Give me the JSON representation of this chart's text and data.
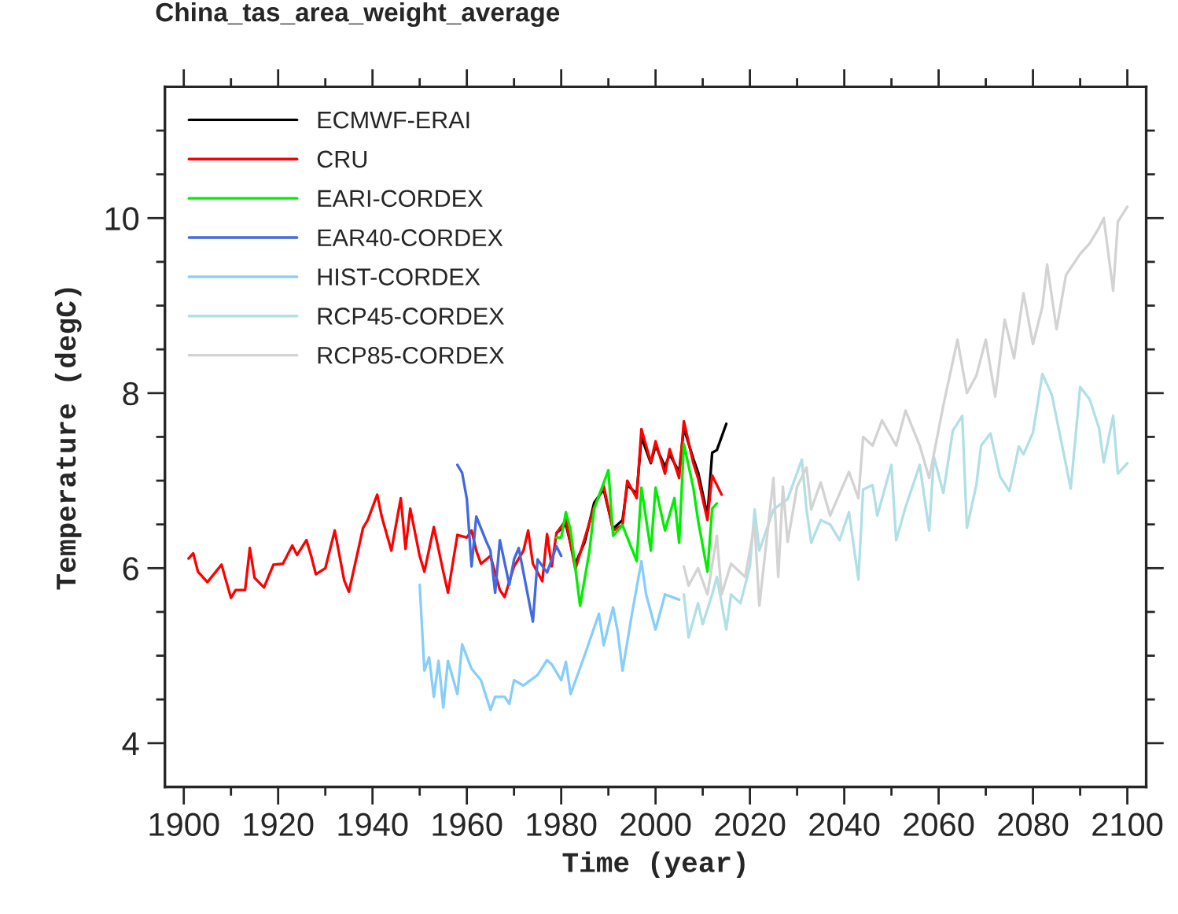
{
  "chart_data": {
    "type": "line",
    "title": "China_tas_area_weight_average",
    "xlabel": "Time (year)",
    "ylabel": "Temperature (degC)",
    "xlim": [
      1896,
      2104
    ],
    "ylim": [
      3.5,
      11.5
    ],
    "xticks": [
      1900,
      {
        "value": 1910,
        "label": null
      },
      1920,
      {
        "value": 1930,
        "label": null
      },
      1940,
      {
        "value": 1950,
        "label": null
      },
      1960,
      {
        "value": 1970,
        "label": null
      },
      1980,
      {
        "value": 1990,
        "label": null
      },
      2000,
      {
        "value": 2010,
        "label": null
      },
      2020,
      {
        "value": 2030,
        "label": null
      },
      2040,
      {
        "value": 2050,
        "label": null
      },
      2060,
      {
        "value": 2070,
        "label": null
      },
      2080,
      {
        "value": 2090,
        "label": null
      },
      2100
    ],
    "yticks": [
      4,
      {
        "value": 4.5,
        "label": null
      },
      {
        "value": 5,
        "label": null
      },
      {
        "value": 5.5,
        "label": null
      },
      6,
      {
        "value": 6.5,
        "label": null
      },
      {
        "value": 7,
        "label": null
      },
      {
        "value": 7.5,
        "label": null
      },
      8,
      {
        "value": 8.5,
        "label": null
      },
      {
        "value": 9,
        "label": null
      },
      {
        "value": 9.5,
        "label": null
      },
      10,
      {
        "value": 10.5,
        "label": null
      },
      {
        "value": 11,
        "label": null
      }
    ],
    "legend": "top left",
    "grid": false,
    "marker": "none",
    "line_style": "solid",
    "series": [
      {
        "name": "ECMWF-ERAI",
        "color": "#000000",
        "x": [
          1979,
          1981,
          1983,
          1985,
          1987,
          1989,
          1991,
          1993,
          1994,
          1996,
          1997,
          1999,
          2000,
          2002,
          2003,
          2005,
          2006,
          2008,
          2009,
          2011,
          2012,
          2013,
          2015
        ],
        "values": [
          6.4,
          6.5,
          6.05,
          6.3,
          6.75,
          6.9,
          6.45,
          6.55,
          6.95,
          6.85,
          7.5,
          7.2,
          7.4,
          7.16,
          7.3,
          7.1,
          7.6,
          7.25,
          7.1,
          6.6,
          7.32,
          7.35,
          7.65
        ]
      },
      {
        "name": "CRU",
        "color": "#ff0000",
        "x": [
          1901,
          1902,
          1903,
          1905,
          1908,
          1910,
          1911,
          1913,
          1914,
          1915,
          1917,
          1919,
          1921,
          1923,
          1924,
          1926,
          1927,
          1928,
          1930,
          1932,
          1934,
          1935,
          1938,
          1939,
          1941,
          1942,
          1944,
          1946,
          1947,
          1948,
          1950,
          1951,
          1953,
          1955,
          1956,
          1958,
          1960,
          1961,
          1962,
          1963,
          1965,
          1967,
          1968,
          1970,
          1972,
          1973,
          1974,
          1976,
          1977,
          1978,
          1979,
          1981,
          1983,
          1987,
          1989,
          1991,
          1993,
          1994,
          1996,
          1997,
          1999,
          2000,
          2002,
          2003,
          2005,
          2006,
          2008,
          2009,
          2011,
          2012,
          2014
        ],
        "values": [
          6.11,
          6.17,
          5.96,
          5.84,
          6.04,
          5.66,
          5.75,
          5.75,
          6.23,
          5.89,
          5.78,
          6.04,
          6.05,
          6.26,
          6.15,
          6.32,
          6.14,
          5.93,
          6.0,
          6.43,
          5.86,
          5.73,
          6.46,
          6.55,
          6.84,
          6.58,
          6.2,
          6.8,
          6.22,
          6.68,
          6.14,
          5.96,
          6.47,
          5.96,
          5.72,
          6.38,
          6.35,
          6.43,
          6.2,
          6.05,
          6.14,
          5.75,
          5.67,
          6.02,
          6.2,
          6.43,
          6.05,
          5.85,
          6.39,
          6.02,
          6.4,
          6.55,
          5.99,
          6.7,
          6.94,
          6.43,
          6.49,
          7.0,
          6.8,
          7.59,
          7.21,
          7.45,
          7.08,
          7.36,
          7.03,
          7.68,
          7.2,
          7.03,
          6.55,
          7.06,
          6.84
        ]
      },
      {
        "name": "EARI-CORDEX",
        "color": "#00ee00",
        "x": [
          1979,
          1980,
          1981,
          1982,
          1984,
          1986,
          1987,
          1990,
          1991,
          1993,
          1996,
          1997,
          1999,
          2000,
          2002,
          2004,
          2005,
          2006,
          2008,
          2009,
          2011,
          2012,
          2013
        ],
        "values": [
          6.35,
          6.35,
          6.64,
          6.43,
          5.57,
          6.2,
          6.68,
          7.12,
          6.37,
          6.49,
          6.08,
          6.92,
          6.2,
          6.92,
          6.43,
          6.8,
          6.29,
          7.42,
          6.92,
          6.55,
          5.96,
          6.68,
          6.74
        ]
      },
      {
        "name": "EAR40-CORDEX",
        "color": "#4169e1",
        "x": [
          1958,
          1959,
          1960,
          1961,
          1962,
          1964,
          1965,
          1966,
          1967,
          1969,
          1970,
          1971,
          1974,
          1975,
          1977,
          1979,
          1980
        ],
        "values": [
          7.18,
          7.09,
          6.79,
          6.02,
          6.59,
          6.32,
          6.2,
          5.72,
          6.32,
          5.81,
          6.1,
          6.23,
          5.39,
          6.1,
          5.95,
          6.25,
          6.14
        ]
      },
      {
        "name": "HIST-CORDEX",
        "color": "#87cefa",
        "x": [
          1950,
          1951,
          1952,
          1953,
          1954,
          1955,
          1956,
          1958,
          1959,
          1961,
          1963,
          1965,
          1966,
          1968,
          1969,
          1970,
          1972,
          1975,
          1977,
          1978,
          1980,
          1981,
          1982,
          1985,
          1988,
          1989,
          1991,
          1992,
          1993,
          1995,
          1997,
          1998,
          2000,
          2002,
          2005
        ],
        "values": [
          5.81,
          4.83,
          4.98,
          4.53,
          4.94,
          4.41,
          4.94,
          4.56,
          5.13,
          4.85,
          4.72,
          4.38,
          4.53,
          4.53,
          4.45,
          4.72,
          4.66,
          4.78,
          4.95,
          4.9,
          4.72,
          4.93,
          4.56,
          5.01,
          5.48,
          5.12,
          5.55,
          5.27,
          4.83,
          5.48,
          6.08,
          5.7,
          5.3,
          5.7,
          5.64
        ]
      },
      {
        "name": "RCP45-CORDEX",
        "color": "#b0e0e6",
        "x": [
          2006,
          2007,
          2009,
          2010,
          2012,
          2013,
          2015,
          2016,
          2018,
          2020,
          2021,
          2022,
          2025,
          2028,
          2031,
          2032,
          2033,
          2035,
          2037,
          2039,
          2041,
          2043,
          2044,
          2046,
          2047,
          2050,
          2051,
          2053,
          2056,
          2058,
          2059,
          2061,
          2063,
          2065,
          2066,
          2068,
          2069,
          2071,
          2073,
          2075,
          2077,
          2078,
          2080,
          2082,
          2084,
          2086,
          2088,
          2090,
          2092,
          2094,
          2095,
          2097,
          2098,
          2100
        ],
        "values": [
          5.7,
          5.21,
          5.6,
          5.36,
          5.7,
          5.9,
          5.3,
          5.7,
          5.6,
          6.02,
          6.67,
          6.2,
          6.67,
          6.79,
          7.24,
          6.67,
          6.29,
          6.55,
          6.5,
          6.32,
          6.64,
          5.87,
          6.9,
          6.95,
          6.6,
          7.18,
          6.32,
          6.7,
          7.18,
          6.43,
          7.27,
          6.86,
          7.57,
          7.74,
          6.46,
          6.95,
          7.4,
          7.54,
          7.05,
          6.88,
          7.39,
          7.3,
          7.55,
          8.22,
          7.98,
          7.45,
          6.91,
          8.07,
          7.93,
          7.6,
          7.21,
          7.74,
          7.08,
          7.2
        ]
      },
      {
        "name": "RCP85-CORDEX",
        "color": "#d3d3d3",
        "x": [
          2006,
          2007,
          2009,
          2011,
          2013,
          2014,
          2016,
          2019,
          2021,
          2022,
          2025,
          2026,
          2027,
          2028,
          2030,
          2032,
          2033,
          2035,
          2037,
          2041,
          2043,
          2044,
          2046,
          2048,
          2051,
          2053,
          2056,
          2058,
          2061,
          2064,
          2066,
          2068,
          2070,
          2072,
          2074,
          2076,
          2078,
          2080,
          2082,
          2083,
          2085,
          2087,
          2090,
          2092,
          2094,
          2095,
          2097,
          2098,
          2100
        ],
        "values": [
          6.02,
          5.8,
          6.0,
          5.7,
          6.37,
          5.7,
          6.05,
          5.9,
          6.5,
          5.57,
          7.03,
          5.9,
          6.93,
          6.3,
          6.93,
          7.15,
          6.67,
          6.98,
          6.6,
          7.1,
          6.8,
          7.5,
          7.4,
          7.69,
          7.4,
          7.8,
          7.4,
          7.03,
          7.86,
          8.61,
          8.0,
          8.2,
          8.61,
          7.96,
          8.84,
          8.4,
          9.14,
          8.56,
          8.99,
          9.47,
          8.73,
          9.35,
          9.59,
          9.71,
          9.89,
          10.0,
          9.17,
          9.96,
          10.13
        ]
      }
    ]
  }
}
